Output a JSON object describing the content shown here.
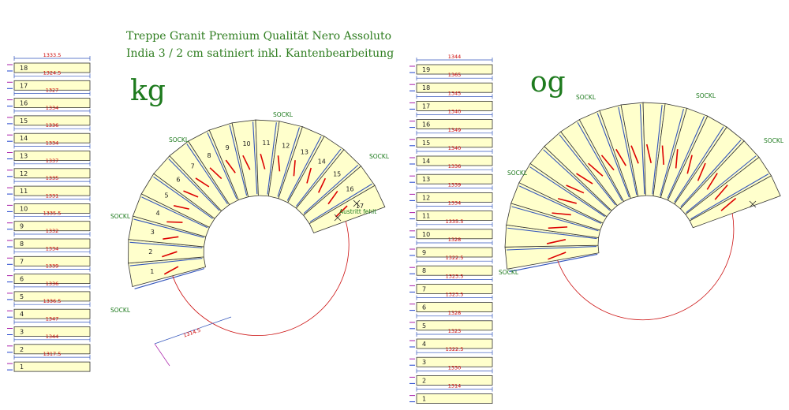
{
  "title_line1": "Treppe Granit Premium Qualität Nero Assoluto",
  "title_line2": "India 3 / 2 cm satiniert inkl. Kantenbearbeitung",
  "kg_label": "kg",
  "og_label": "og",
  "sockel_label": "SOCKL",
  "exit_note": "Austritt fehlt",
  "kg_bottom_dim": "1314.5",
  "kg": {
    "steps": [
      {
        "n": "18",
        "dim": "1333.5"
      },
      {
        "n": "17",
        "dim": "1324.5"
      },
      {
        "n": "16",
        "dim": "1327"
      },
      {
        "n": "15",
        "dim": "1334"
      },
      {
        "n": "14",
        "dim": "1336"
      },
      {
        "n": "13",
        "dim": "1334"
      },
      {
        "n": "12",
        "dim": "1337"
      },
      {
        "n": "11",
        "dim": "1335"
      },
      {
        "n": "10",
        "dim": "1331"
      },
      {
        "n": "9",
        "dim": "1335.5"
      },
      {
        "n": "8",
        "dim": "1332"
      },
      {
        "n": "7",
        "dim": "1334"
      },
      {
        "n": "6",
        "dim": "1339"
      },
      {
        "n": "5",
        "dim": "1336"
      },
      {
        "n": "4",
        "dim": "1336.5"
      },
      {
        "n": "3",
        "dim": "1347"
      },
      {
        "n": "2",
        "dim": "1344"
      },
      {
        "n": "1",
        "dim": "1317.5"
      }
    ],
    "arc_numbers": [
      "1",
      "2",
      "3",
      "4",
      "5",
      "6",
      "7",
      "8",
      "9",
      "10",
      "11",
      "12",
      "13",
      "14",
      "15",
      "16",
      "17"
    ]
  },
  "og": {
    "steps": [
      {
        "n": "19",
        "dim": "1344"
      },
      {
        "n": "18",
        "dim": "1365"
      },
      {
        "n": "17",
        "dim": "1345"
      },
      {
        "n": "16",
        "dim": "1340"
      },
      {
        "n": "15",
        "dim": "1349"
      },
      {
        "n": "14",
        "dim": "1340"
      },
      {
        "n": "13",
        "dim": "1336"
      },
      {
        "n": "12",
        "dim": "1339"
      },
      {
        "n": "11",
        "dim": "1334"
      },
      {
        "n": "10",
        "dim": "1335.5"
      },
      {
        "n": "9",
        "dim": "1328"
      },
      {
        "n": "8",
        "dim": "1322.5"
      },
      {
        "n": "7",
        "dim": "1323.5"
      },
      {
        "n": "6",
        "dim": "1323.5"
      },
      {
        "n": "5",
        "dim": "1328"
      },
      {
        "n": "4",
        "dim": "1323"
      },
      {
        "n": "3",
        "dim": "1322.5"
      },
      {
        "n": "2",
        "dim": "1330"
      },
      {
        "n": "1",
        "dim": "1314"
      }
    ]
  },
  "colors": {
    "tread_fill": "#ffffcc",
    "title_green": "#2e7d1f",
    "dim_red": "#cc0000",
    "line_blue": "#3355bb",
    "nosing_red": "#dd0000"
  }
}
